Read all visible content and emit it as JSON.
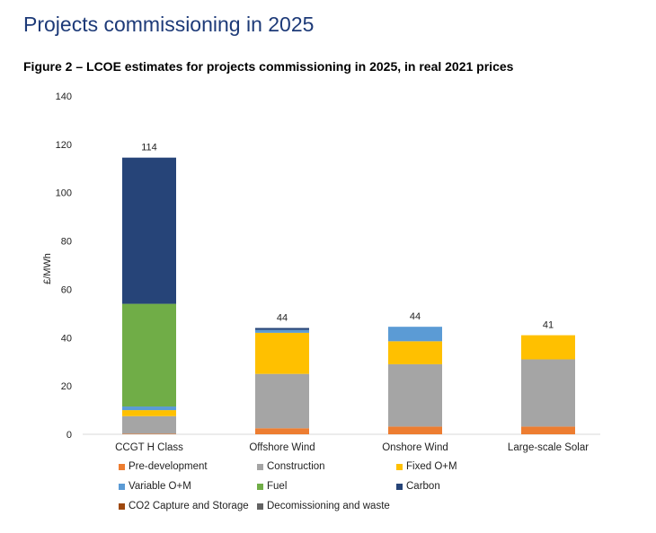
{
  "page": {
    "heading": "Projects commissioning in 2025",
    "caption": "Figure 2 – LCOE estimates for projects commissioning in 2025, in real 2021 prices"
  },
  "colors": {
    "Pre-development": "#ed7d31",
    "Construction": "#a5a5a5",
    "Fixed O+M": "#ffc000",
    "Variable O+M": "#5b9bd5",
    "Fuel": "#70ad47",
    "Carbon": "#264478",
    "CO2 Capture and Storage": "#9e480e",
    "Decomissioning and waste": "#636363"
  },
  "chart_data": {
    "type": "bar",
    "stacked": true,
    "title": "Figure 2 – LCOE estimates for projects commissioning in 2025, in real 2021 prices",
    "xlabel": "",
    "ylabel": "£/MWh",
    "ylim": [
      0,
      140
    ],
    "yticks": [
      0,
      20,
      40,
      60,
      80,
      100,
      120,
      140
    ],
    "grid": false,
    "legend_position": "bottom",
    "categories": [
      "CCGT H Class",
      "Offshore Wind",
      "Onshore Wind",
      "Large-scale Solar"
    ],
    "totals": [
      "114",
      "44",
      "44",
      "41"
    ],
    "series": [
      {
        "name": "Pre-development",
        "values": [
          0.2,
          2.5,
          3.2,
          3.2
        ]
      },
      {
        "name": "Construction",
        "values": [
          7.3,
          22.5,
          25.8,
          27.8
        ]
      },
      {
        "name": "Fixed O+M",
        "values": [
          2.5,
          17.0,
          9.5,
          10.0
        ]
      },
      {
        "name": "Variable O+M",
        "values": [
          1.5,
          1.2,
          6.0,
          0.0
        ]
      },
      {
        "name": "Fuel",
        "values": [
          42.5,
          0.0,
          0.0,
          0.0
        ]
      },
      {
        "name": "Carbon",
        "values": [
          60.5,
          0.8,
          0.0,
          0.0
        ]
      },
      {
        "name": "CO2 Capture and Storage",
        "values": [
          0.0,
          0.0,
          0.0,
          0.0
        ]
      },
      {
        "name": "Decomissioning and waste",
        "values": [
          0.0,
          0.0,
          0.0,
          0.0
        ]
      }
    ]
  }
}
